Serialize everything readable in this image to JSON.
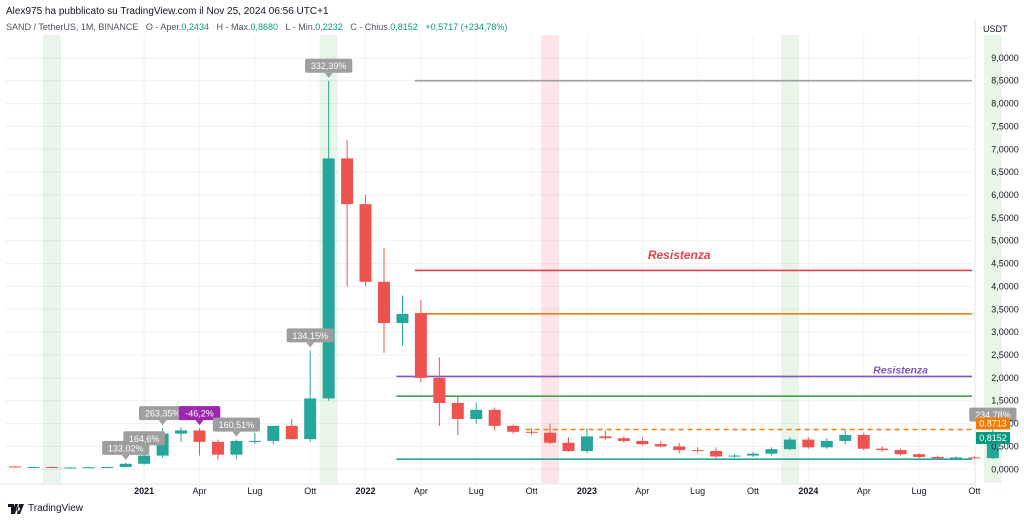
{
  "header": {
    "published": "Alex975 ha pubblicato su TradingView.com il Nov 25, 2024 06:56 UTC+1",
    "symbol": "SAND / TetherUS, 1M, BINANCE",
    "open_label": "O - Aper.",
    "open": "0,2434",
    "high_label": "H - Max.",
    "high": "0,8680",
    "low_label": "L - Min.",
    "low": "0,2232",
    "close_label": "C - Chius.",
    "close": "0,8152",
    "change": "+0,5717 (+234,78%)"
  },
  "footer": {
    "brand": "TradingView"
  },
  "chart_data": {
    "type": "candlestick",
    "currency": "USDT",
    "ylim": [
      -0.3,
      9.5
    ],
    "y_ticks": [
      "9,0000",
      "8,5000",
      "8,0000",
      "7,5000",
      "7,0000",
      "6,5000",
      "6,0000",
      "5,5000",
      "5,0000",
      "4,5000",
      "4,0000",
      "3,5000",
      "3,0000",
      "2,5000",
      "2,0000",
      "1,5000",
      "1,0000",
      "0,5000",
      "0,0000"
    ],
    "x_ticks": [
      {
        "i": 7,
        "label": "2021",
        "bold": true
      },
      {
        "i": 10,
        "label": "Apr"
      },
      {
        "i": 13,
        "label": "Lug"
      },
      {
        "i": 16,
        "label": "Ott"
      },
      {
        "i": 19,
        "label": "2022",
        "bold": true
      },
      {
        "i": 22,
        "label": "Apr"
      },
      {
        "i": 25,
        "label": "Lug"
      },
      {
        "i": 28,
        "label": "Ott"
      },
      {
        "i": 31,
        "label": "2023",
        "bold": true
      },
      {
        "i": 34,
        "label": "Apr"
      },
      {
        "i": 37,
        "label": "Lug"
      },
      {
        "i": 40,
        "label": "Ott"
      },
      {
        "i": 43,
        "label": "2024",
        "bold": true
      },
      {
        "i": 46,
        "label": "Apr"
      },
      {
        "i": 49,
        "label": "Lug"
      },
      {
        "i": 52,
        "label": "Ott"
      }
    ],
    "candles": [
      {
        "o": 0.06,
        "h": 0.07,
        "l": 0.05,
        "c": 0.05
      },
      {
        "o": 0.05,
        "h": 0.06,
        "l": 0.04,
        "c": 0.05
      },
      {
        "o": 0.05,
        "h": 0.06,
        "l": 0.04,
        "c": 0.04
      },
      {
        "o": 0.04,
        "h": 0.05,
        "l": 0.03,
        "c": 0.04
      },
      {
        "o": 0.04,
        "h": 0.05,
        "l": 0.03,
        "c": 0.045
      },
      {
        "o": 0.045,
        "h": 0.06,
        "l": 0.04,
        "c": 0.05
      },
      {
        "o": 0.05,
        "h": 0.14,
        "l": 0.04,
        "c": 0.12
      },
      {
        "o": 0.12,
        "h": 0.35,
        "l": 0.1,
        "c": 0.3
      },
      {
        "o": 0.3,
        "h": 0.9,
        "l": 0.25,
        "c": 0.78
      },
      {
        "o": 0.78,
        "h": 0.92,
        "l": 0.6,
        "c": 0.85
      },
      {
        "o": 0.85,
        "h": 0.9,
        "l": 0.3,
        "c": 0.6
      },
      {
        "o": 0.6,
        "h": 0.65,
        "l": 0.2,
        "c": 0.32
      },
      {
        "o": 0.32,
        "h": 0.65,
        "l": 0.22,
        "c": 0.62
      },
      {
        "o": 0.62,
        "h": 0.8,
        "l": 0.55,
        "c": 0.62
      },
      {
        "o": 0.62,
        "h": 0.95,
        "l": 0.55,
        "c": 0.95
      },
      {
        "o": 0.95,
        "h": 1.1,
        "l": 0.65,
        "c": 0.66
      },
      {
        "o": 0.66,
        "h": 2.6,
        "l": 0.6,
        "c": 1.55
      },
      {
        "o": 1.55,
        "h": 8.5,
        "l": 1.5,
        "c": 6.8
      },
      {
        "o": 6.8,
        "h": 7.2,
        "l": 4.0,
        "c": 5.8
      },
      {
        "o": 5.8,
        "h": 6.0,
        "l": 4.0,
        "c": 4.1
      },
      {
        "o": 4.1,
        "h": 4.85,
        "l": 2.55,
        "c": 3.2
      },
      {
        "o": 3.2,
        "h": 3.8,
        "l": 2.7,
        "c": 3.4
      },
      {
        "o": 3.4,
        "h": 3.7,
        "l": 1.9,
        "c": 2.0
      },
      {
        "o": 2.0,
        "h": 2.45,
        "l": 0.95,
        "c": 1.45
      },
      {
        "o": 1.45,
        "h": 1.6,
        "l": 0.75,
        "c": 1.1
      },
      {
        "o": 1.1,
        "h": 1.45,
        "l": 1.0,
        "c": 1.3
      },
      {
        "o": 1.3,
        "h": 1.35,
        "l": 0.85,
        "c": 0.95
      },
      {
        "o": 0.95,
        "h": 0.98,
        "l": 0.78,
        "c": 0.82
      },
      {
        "o": 0.82,
        "h": 0.9,
        "l": 0.75,
        "c": 0.8
      },
      {
        "o": 0.8,
        "h": 1.0,
        "l": 0.55,
        "c": 0.58
      },
      {
        "o": 0.58,
        "h": 0.7,
        "l": 0.38,
        "c": 0.4
      },
      {
        "o": 0.4,
        "h": 0.9,
        "l": 0.35,
        "c": 0.72
      },
      {
        "o": 0.72,
        "h": 0.85,
        "l": 0.65,
        "c": 0.68
      },
      {
        "o": 0.68,
        "h": 0.72,
        "l": 0.58,
        "c": 0.62
      },
      {
        "o": 0.62,
        "h": 0.7,
        "l": 0.52,
        "c": 0.55
      },
      {
        "o": 0.55,
        "h": 0.62,
        "l": 0.48,
        "c": 0.5
      },
      {
        "o": 0.5,
        "h": 0.58,
        "l": 0.35,
        "c": 0.42
      },
      {
        "o": 0.42,
        "h": 0.48,
        "l": 0.35,
        "c": 0.4
      },
      {
        "o": 0.4,
        "h": 0.48,
        "l": 0.25,
        "c": 0.28
      },
      {
        "o": 0.28,
        "h": 0.33,
        "l": 0.25,
        "c": 0.3
      },
      {
        "o": 0.3,
        "h": 0.38,
        "l": 0.27,
        "c": 0.34
      },
      {
        "o": 0.34,
        "h": 0.48,
        "l": 0.3,
        "c": 0.44
      },
      {
        "o": 0.44,
        "h": 0.7,
        "l": 0.42,
        "c": 0.65
      },
      {
        "o": 0.65,
        "h": 0.7,
        "l": 0.45,
        "c": 0.48
      },
      {
        "o": 0.48,
        "h": 0.68,
        "l": 0.45,
        "c": 0.62
      },
      {
        "o": 0.62,
        "h": 0.85,
        "l": 0.55,
        "c": 0.75
      },
      {
        "o": 0.75,
        "h": 0.8,
        "l": 0.42,
        "c": 0.45
      },
      {
        "o": 0.45,
        "h": 0.5,
        "l": 0.38,
        "c": 0.42
      },
      {
        "o": 0.42,
        "h": 0.45,
        "l": 0.3,
        "c": 0.33
      },
      {
        "o": 0.33,
        "h": 0.35,
        "l": 0.24,
        "c": 0.27
      },
      {
        "o": 0.27,
        "h": 0.3,
        "l": 0.22,
        "c": 0.24
      },
      {
        "o": 0.24,
        "h": 0.28,
        "l": 0.22,
        "c": 0.26
      },
      {
        "o": 0.26,
        "h": 0.28,
        "l": 0.22,
        "c": 0.24
      },
      {
        "o": 0.2434,
        "h": 0.868,
        "l": 0.2232,
        "c": 0.8152
      }
    ],
    "vertical_bands": [
      {
        "i": 2,
        "color": "green"
      },
      {
        "i": 17,
        "color": "green"
      },
      {
        "i": 29,
        "color": "red"
      },
      {
        "i": 42,
        "color": "green"
      },
      {
        "i": 53,
        "color": "green"
      }
    ],
    "horizontal_lines": [
      {
        "y": 8.5,
        "color": "#9e9e9e",
        "from_i": 22
      },
      {
        "y": 4.35,
        "color": "#e0434f",
        "from_i": 22
      },
      {
        "y": 3.4,
        "color": "#f57c00",
        "from_i": 22
      },
      {
        "y": 2.03,
        "color": "#7e57c2",
        "from_i": 21
      },
      {
        "y": 1.6,
        "color": "#43a047",
        "from_i": 21
      },
      {
        "y": 0.22,
        "color": "#26a69a",
        "from_i": 21
      },
      {
        "y": 0.8713,
        "color": "#f57c00",
        "from_i": 28,
        "dashed": true
      }
    ],
    "text_annotations": [
      {
        "text": "Resistenza",
        "y": 4.6,
        "i": 36,
        "color": "#e0434f",
        "size": 12
      },
      {
        "text": "Resistenza",
        "y": 2.1,
        "i": 48,
        "color": "#7e57c2",
        "size": 10.5
      }
    ],
    "pct_labels": [
      {
        "i": 6,
        "above": 0.14,
        "text": "133,02%",
        "color": "#9e9e9e"
      },
      {
        "i": 7,
        "above": 0.35,
        "text": "164,6%",
        "color": "#9e9e9e"
      },
      {
        "i": 8,
        "above": 0.9,
        "text": "263,35%",
        "color": "#9e9e9e"
      },
      {
        "i": 10,
        "above": 0.9,
        "text": "-46,2%",
        "color": "#9c27b0"
      },
      {
        "i": 12,
        "above": 0.65,
        "text": "160,51%",
        "color": "#9e9e9e"
      },
      {
        "i": 16,
        "above": 2.6,
        "text": "134,15%",
        "color": "#9e9e9e"
      },
      {
        "i": 17,
        "above": 8.5,
        "text": "332,39%",
        "color": "#9e9e9e"
      },
      {
        "i": 53,
        "above": 0.868,
        "text": "234,78%",
        "color": "#9e9e9e"
      }
    ],
    "price_tags": [
      {
        "y": 0.8713,
        "text": "0,8713",
        "color": "#f57c00"
      },
      {
        "y": 0.8152,
        "text": "0,8152",
        "color": "#089981"
      }
    ]
  }
}
